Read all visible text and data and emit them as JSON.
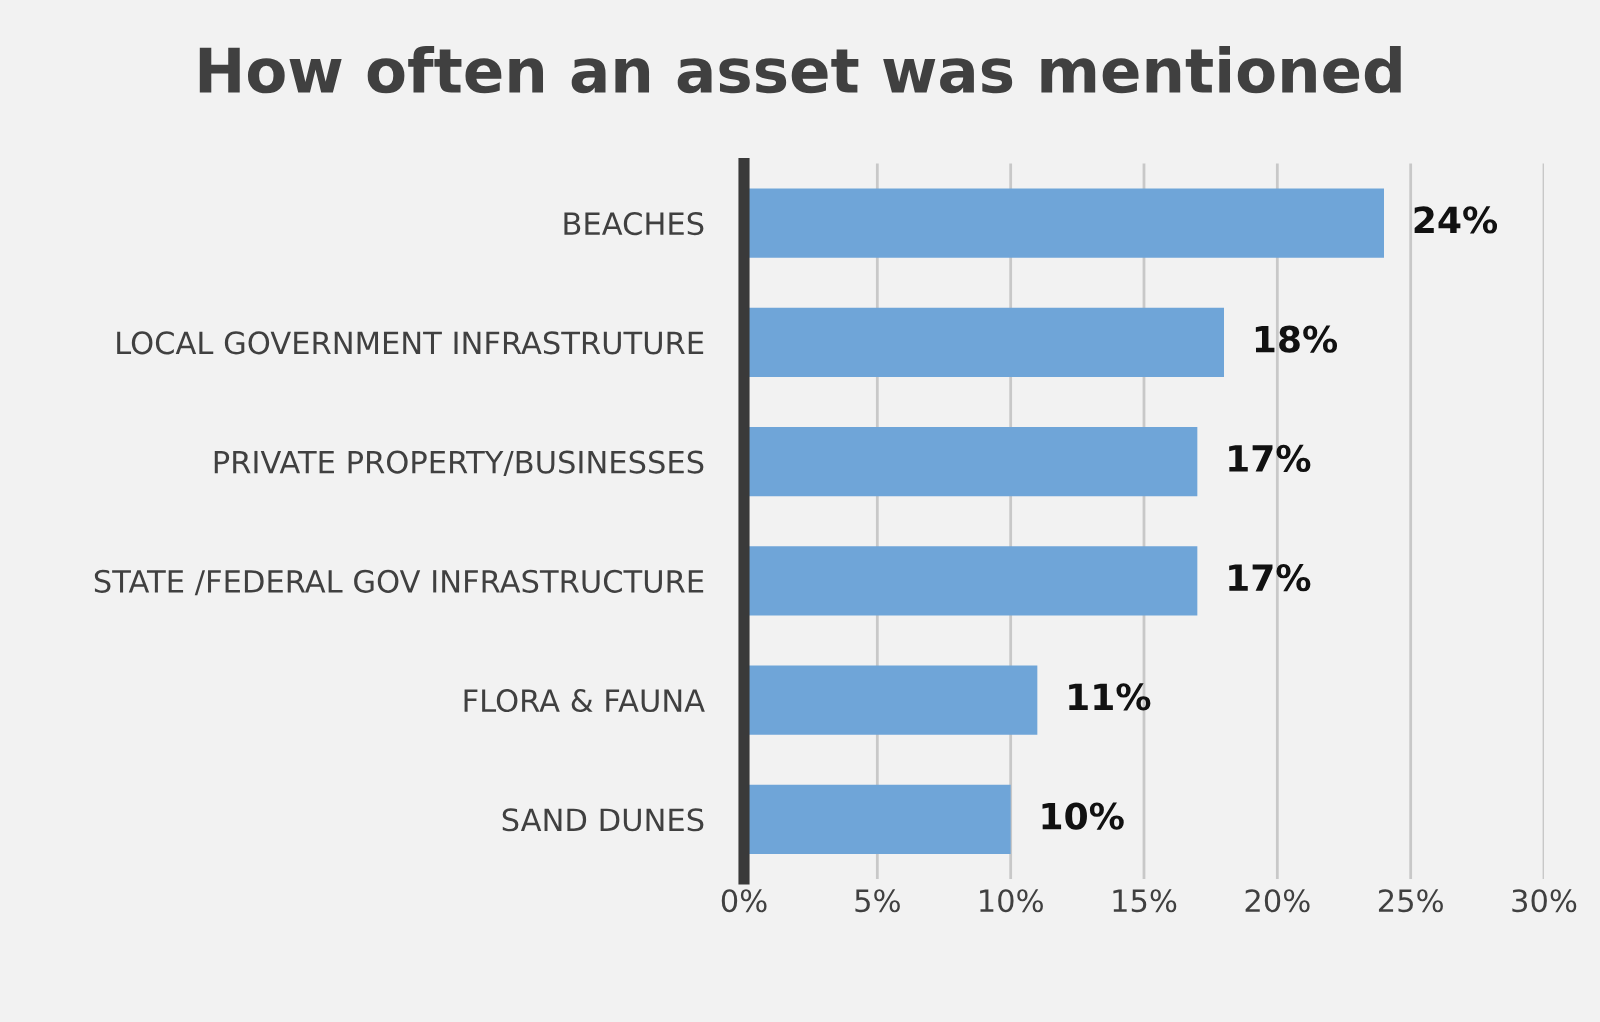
{
  "chart_data": {
    "type": "bar",
    "orientation": "horizontal",
    "title": "How often an asset was mentioned",
    "categories": [
      "BEACHES",
      "LOCAL GOVERNMENT INFRASTRUTURE",
      "PRIVATE PROPERTY/BUSINESSES",
      "STATE /FEDERAL GOV INFRASTRUCTURE",
      "FLORA & FAUNA",
      "SAND DUNES"
    ],
    "values": [
      24,
      18,
      17,
      17,
      11,
      10
    ],
    "value_labels": [
      "24%",
      "18%",
      "17%",
      "17%",
      "11%",
      "10%"
    ],
    "color": "#6fa5d8",
    "xlim": [
      0,
      30
    ],
    "xticks": [
      {
        "value": 0,
        "label": "0%"
      },
      {
        "value": 5,
        "label": "5%"
      },
      {
        "value": 10,
        "label": "10%"
      },
      {
        "value": 15,
        "label": "15%"
      },
      {
        "value": 20,
        "label": "20%"
      },
      {
        "value": 25,
        "label": "25%"
      },
      {
        "value": 30,
        "label": "30%"
      }
    ],
    "grid": "x"
  }
}
